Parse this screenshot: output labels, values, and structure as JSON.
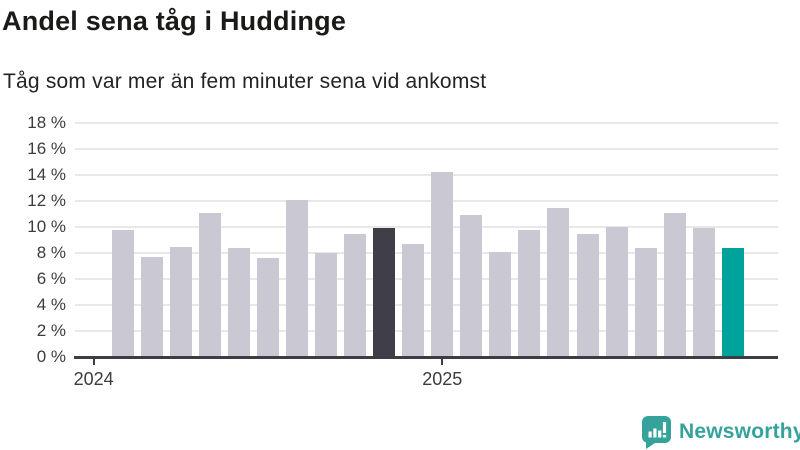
{
  "header": {
    "title": "Andel sena tåg i Huddinge",
    "subtitle": "Tåg som var mer än fem minuter sena vid ankomst"
  },
  "chart_data": {
    "type": "bar",
    "title": "Andel sena tåg i Huddinge",
    "subtitle": "Tåg som var mer än fem minuter sena vid ankomst",
    "unit": "%",
    "values": [
      9.8,
      7.7,
      8.5,
      11.1,
      8.4,
      7.6,
      12.1,
      8.0,
      9.5,
      9.9,
      8.7,
      14.2,
      10.9,
      8.1,
      9.8,
      11.5,
      9.5,
      10.0,
      8.4,
      11.1,
      9.9,
      8.4
    ],
    "highlight_dark_index": 9,
    "highlight_teal_index": 21,
    "ylim": [
      0,
      18
    ],
    "ytick_step": 2,
    "ytick_labels": [
      "0 %",
      "2 %",
      "4 %",
      "6 %",
      "8 %",
      "10 %",
      "12 %",
      "14 %",
      "16 %",
      "18 %"
    ],
    "xticks": [
      {
        "label": "2024",
        "slot": -1
      },
      {
        "label": "2025",
        "slot": 11
      }
    ],
    "grid": "horizontal",
    "legend": "none",
    "colors": {
      "bar_default": "#c9c8d3",
      "bar_dark": "#3f3f49",
      "bar_teal": "#00a39b",
      "gridline": "#e8e8ea",
      "axis": "#3d3d46",
      "title_text": "#1a1a18",
      "tick_text": "#3c3c3c"
    }
  },
  "footer": {
    "logo_text": "Newsworthy",
    "logo_color": "#35a29b",
    "logo_icon": "newsworthy-speech-bubble-bar-chart-icon"
  }
}
